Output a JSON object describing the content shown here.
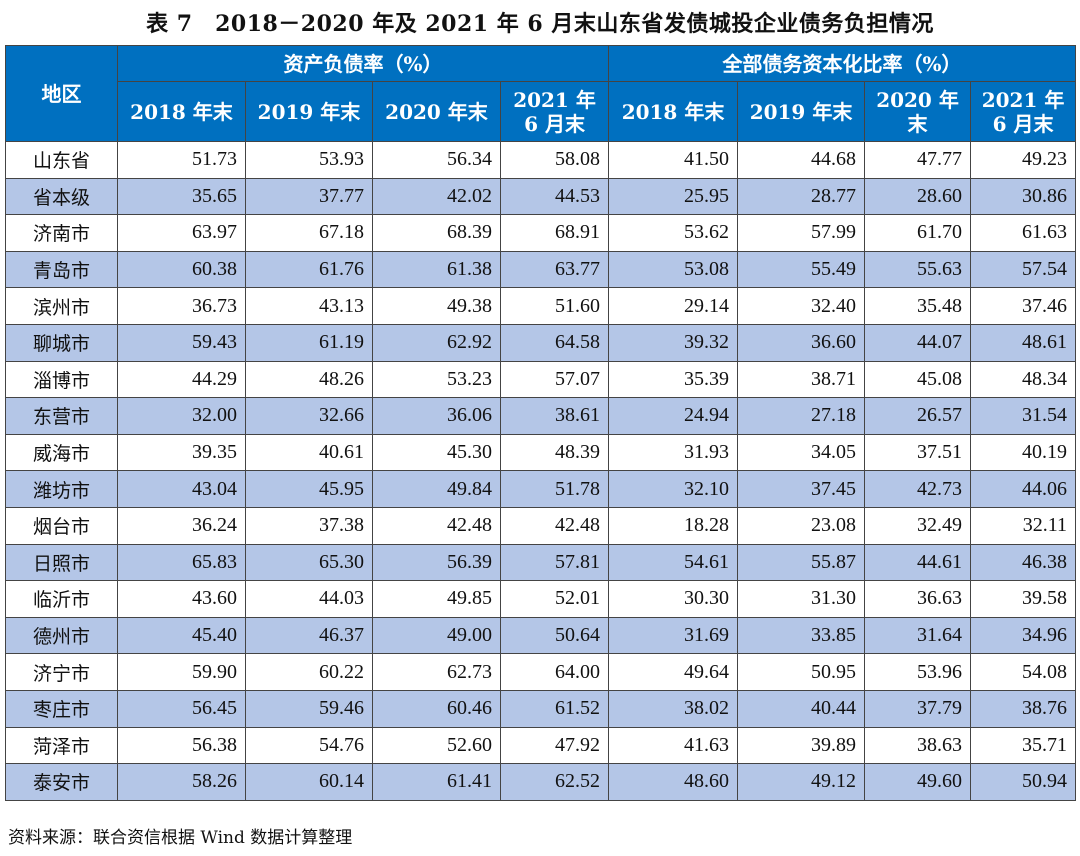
{
  "title": "表 7　2018－2020 年及 2021 年 6 月末山东省发债城投企业债务负担情况",
  "header": {
    "region": "地区",
    "group1": "资产负债率（%）",
    "group2": "全部债务资本化比率（%）",
    "group1_cols": [
      "2018 年末",
      "2019 年末",
      "2020 年末",
      "2021 年\n6 月末"
    ],
    "group2_cols": [
      "2018 年末",
      "2019 年末",
      "2020 年\n末",
      "2021 年\n6 月末"
    ]
  },
  "colors": {
    "header_bg": "#0070c0",
    "alt_row_bg": "#b4c6e7"
  },
  "rows": [
    {
      "region": "山东省",
      "values": [
        "51.73",
        "53.93",
        "56.34",
        "58.08",
        "41.50",
        "44.68",
        "47.77",
        "49.23"
      ]
    },
    {
      "region": "省本级",
      "values": [
        "35.65",
        "37.77",
        "42.02",
        "44.53",
        "25.95",
        "28.77",
        "28.60",
        "30.86"
      ]
    },
    {
      "region": "济南市",
      "values": [
        "63.97",
        "67.18",
        "68.39",
        "68.91",
        "53.62",
        "57.99",
        "61.70",
        "61.63"
      ]
    },
    {
      "region": "青岛市",
      "values": [
        "60.38",
        "61.76",
        "61.38",
        "63.77",
        "53.08",
        "55.49",
        "55.63",
        "57.54"
      ]
    },
    {
      "region": "滨州市",
      "values": [
        "36.73",
        "43.13",
        "49.38",
        "51.60",
        "29.14",
        "32.40",
        "35.48",
        "37.46"
      ]
    },
    {
      "region": "聊城市",
      "values": [
        "59.43",
        "61.19",
        "62.92",
        "64.58",
        "39.32",
        "36.60",
        "44.07",
        "48.61"
      ]
    },
    {
      "region": "淄博市",
      "values": [
        "44.29",
        "48.26",
        "53.23",
        "57.07",
        "35.39",
        "38.71",
        "45.08",
        "48.34"
      ]
    },
    {
      "region": "东营市",
      "values": [
        "32.00",
        "32.66",
        "36.06",
        "38.61",
        "24.94",
        "27.18",
        "26.57",
        "31.54"
      ]
    },
    {
      "region": "威海市",
      "values": [
        "39.35",
        "40.61",
        "45.30",
        "48.39",
        "31.93",
        "34.05",
        "37.51",
        "40.19"
      ]
    },
    {
      "region": "潍坊市",
      "values": [
        "43.04",
        "45.95",
        "49.84",
        "51.78",
        "32.10",
        "37.45",
        "42.73",
        "44.06"
      ]
    },
    {
      "region": "烟台市",
      "values": [
        "36.24",
        "37.38",
        "42.48",
        "42.48",
        "18.28",
        "23.08",
        "32.49",
        "32.11"
      ]
    },
    {
      "region": "日照市",
      "values": [
        "65.83",
        "65.30",
        "56.39",
        "57.81",
        "54.61",
        "55.87",
        "44.61",
        "46.38"
      ]
    },
    {
      "region": "临沂市",
      "values": [
        "43.60",
        "44.03",
        "49.85",
        "52.01",
        "30.30",
        "31.30",
        "36.63",
        "39.58"
      ]
    },
    {
      "region": "德州市",
      "values": [
        "45.40",
        "46.37",
        "49.00",
        "50.64",
        "31.69",
        "33.85",
        "31.64",
        "34.96"
      ]
    },
    {
      "region": "济宁市",
      "values": [
        "59.90",
        "60.22",
        "62.73",
        "64.00",
        "49.64",
        "50.95",
        "53.96",
        "54.08"
      ]
    },
    {
      "region": "枣庄市",
      "values": [
        "56.45",
        "59.46",
        "60.46",
        "61.52",
        "38.02",
        "40.44",
        "37.79",
        "38.76"
      ]
    },
    {
      "region": "菏泽市",
      "values": [
        "56.38",
        "54.76",
        "52.60",
        "47.92",
        "41.63",
        "39.89",
        "38.63",
        "35.71"
      ]
    },
    {
      "region": "泰安市",
      "values": [
        "58.26",
        "60.14",
        "61.41",
        "62.52",
        "48.60",
        "49.12",
        "49.60",
        "50.94"
      ]
    }
  ],
  "footer": "资料来源：联合资信根据 Wind 数据计算整理"
}
